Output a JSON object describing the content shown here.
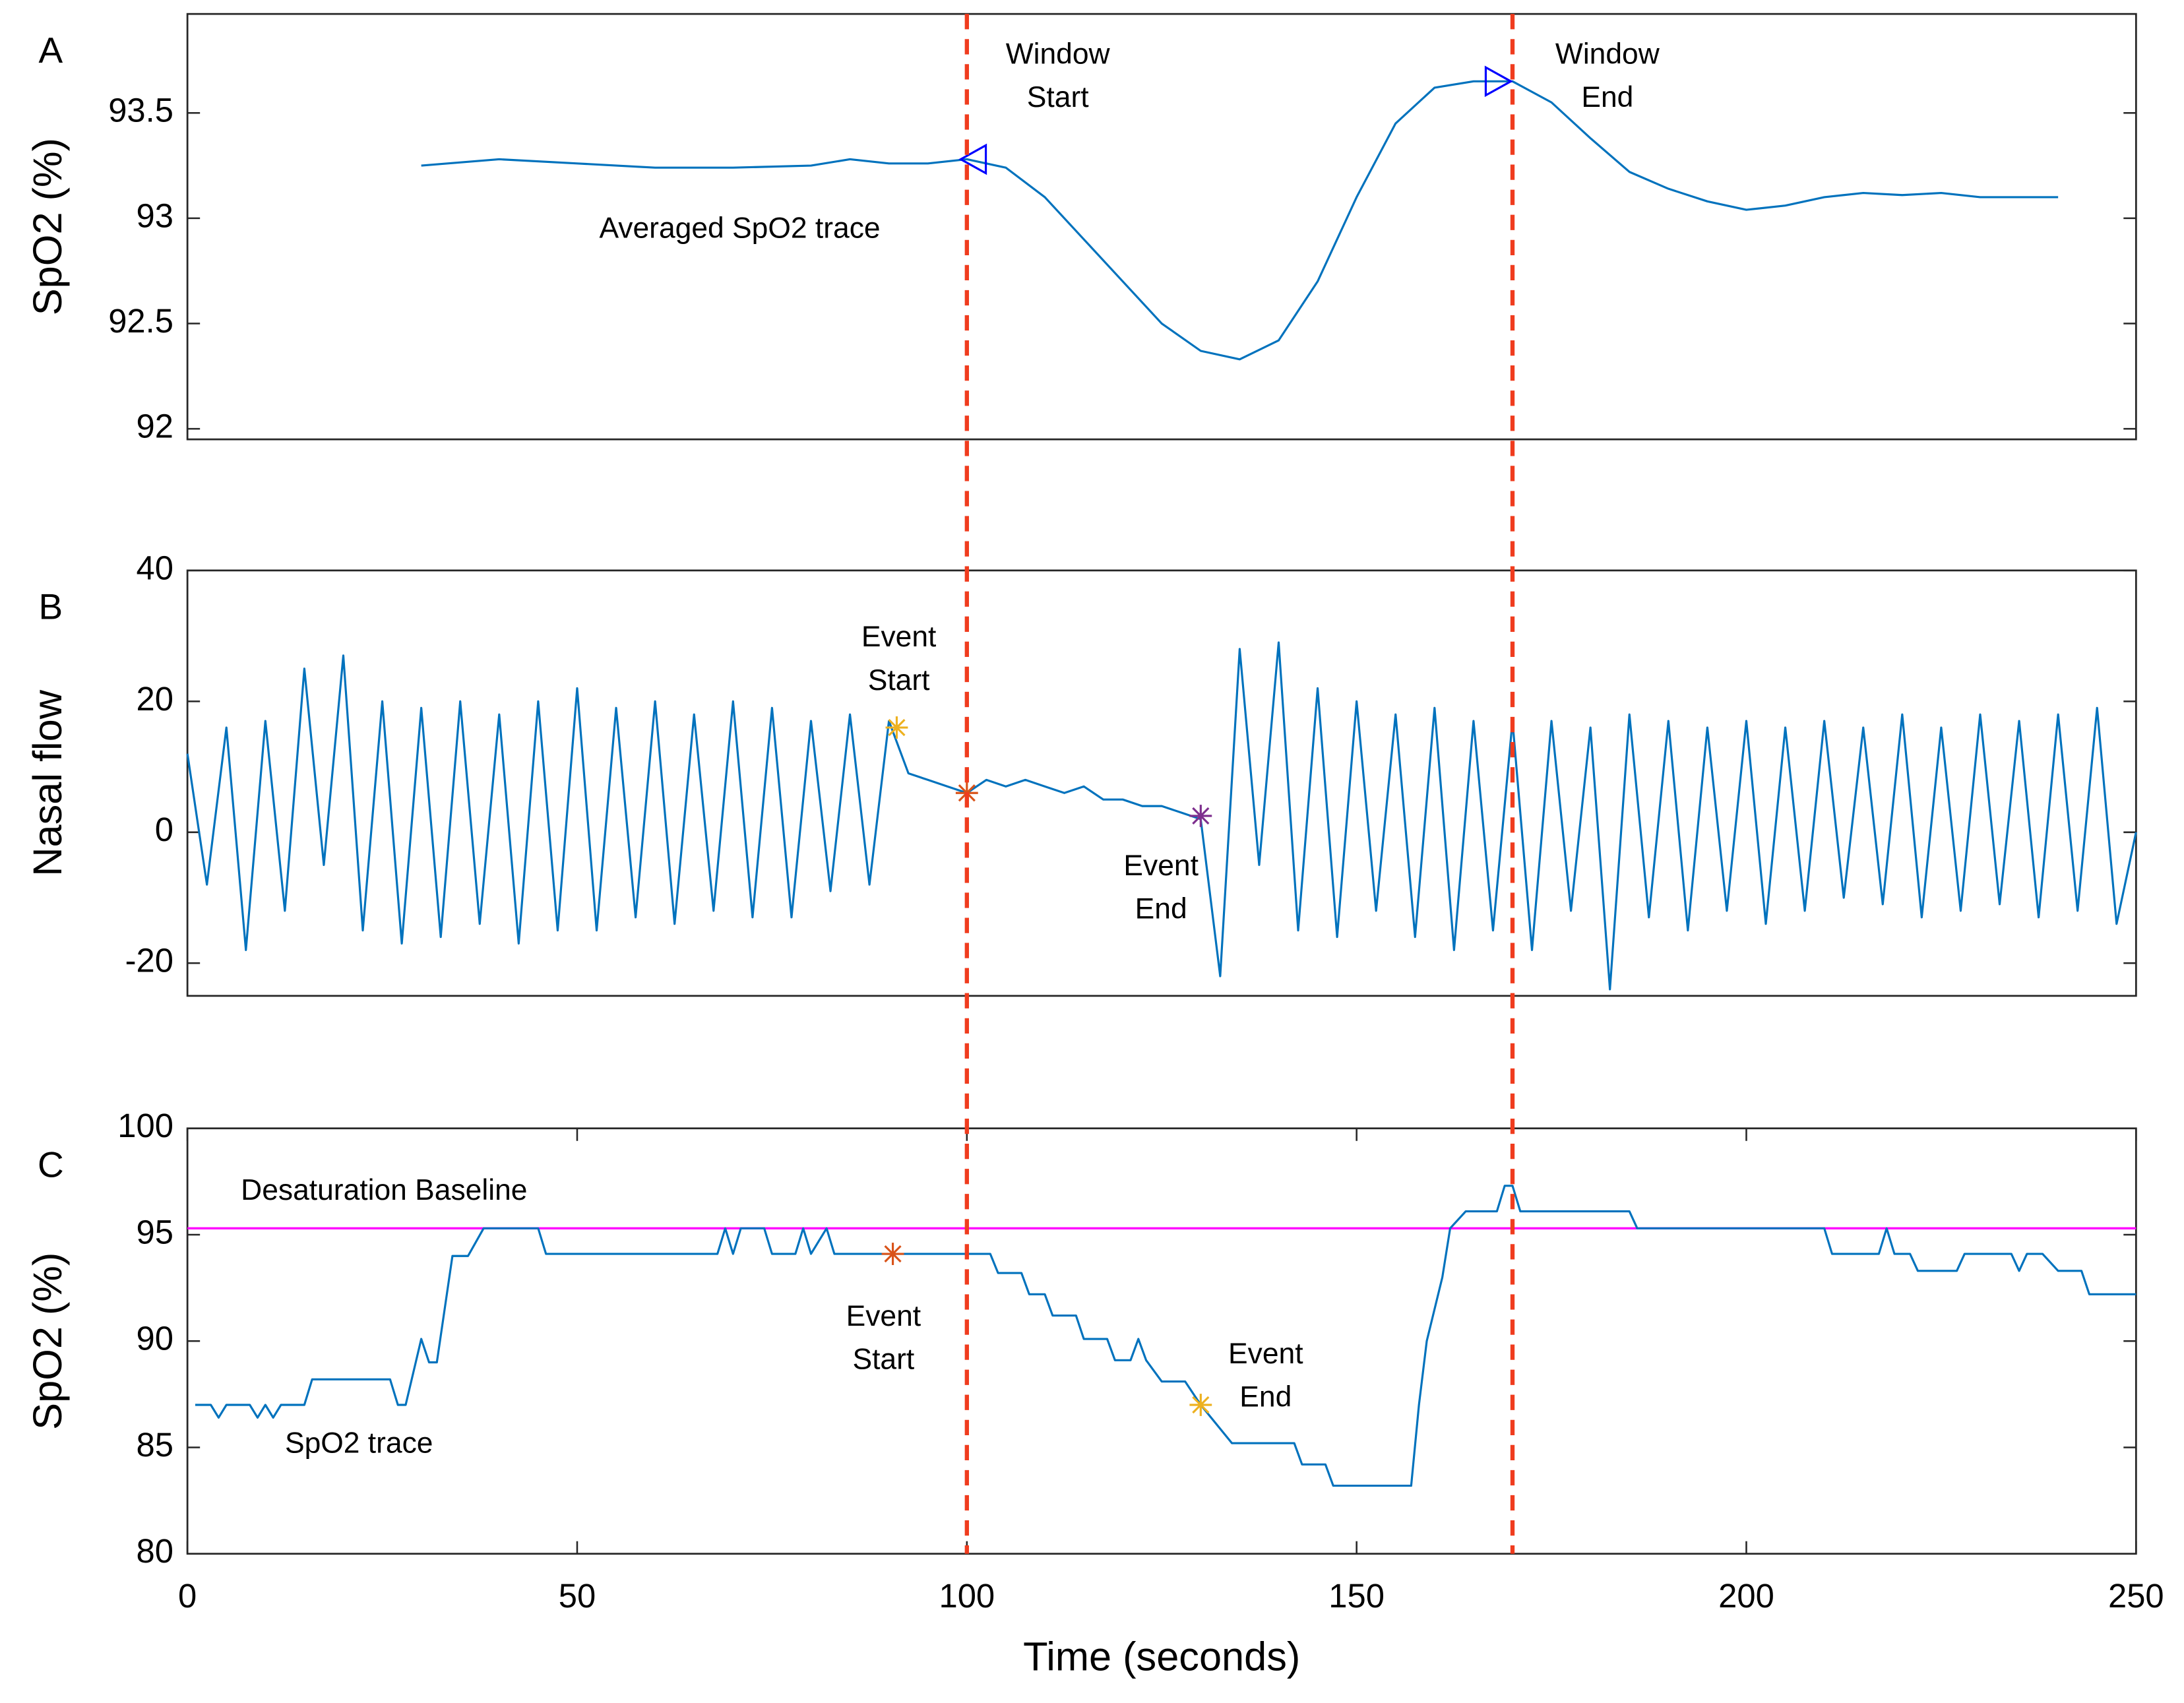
{
  "chart_data": [
    {
      "type": "line",
      "panel_label": "A",
      "ylabel": "SpO2 (%)",
      "xlim": [
        0,
        250
      ],
      "ylim": [
        91.95,
        93.97
      ],
      "yticks": [
        92,
        92.5,
        93,
        93.5
      ],
      "x": [
        30,
        40,
        50,
        60,
        70,
        80,
        85,
        90,
        95,
        100,
        105,
        110,
        115,
        120,
        125,
        130,
        135,
        140,
        145,
        150,
        155,
        160,
        165,
        170,
        175,
        180,
        185,
        190,
        195,
        200,
        205,
        210,
        215,
        220,
        225,
        230,
        235,
        240
      ],
      "series": [
        {
          "name": "Averaged SpO2 trace",
          "color": "#0072bd",
          "values": [
            93.25,
            93.28,
            93.26,
            93.24,
            93.24,
            93.25,
            93.28,
            93.26,
            93.26,
            93.28,
            93.24,
            93.1,
            92.9,
            92.7,
            92.5,
            92.37,
            92.33,
            92.42,
            92.7,
            93.1,
            93.45,
            93.62,
            93.65,
            93.65,
            93.55,
            93.38,
            93.22,
            93.14,
            93.08,
            93.04,
            93.06,
            93.1,
            93.12,
            93.11,
            93.12,
            93.1,
            93.1,
            93.1
          ]
        }
      ],
      "markers": [
        {
          "x": 101,
          "y": 93.28,
          "symbol": "triangle-left",
          "color": "#0000ff"
        },
        {
          "x": 168,
          "y": 93.65,
          "symbol": "triangle-right",
          "color": "#0000ff"
        }
      ],
      "annotations": [
        {
          "lines": [
            "Window",
            "Start"
          ]
        },
        {
          "lines": [
            "Window",
            "End"
          ]
        }
      ],
      "vlines": [
        100,
        170
      ],
      "vline_color": "#f03c1e"
    },
    {
      "type": "line",
      "panel_label": "B",
      "ylabel": "Nasal flow",
      "xlim": [
        0,
        250
      ],
      "ylim": [
        -25,
        40
      ],
      "yticks": [
        -20,
        0,
        20,
        40
      ],
      "x": [
        0,
        2.5,
        5,
        7.5,
        10,
        12.5,
        15,
        17.5,
        20,
        22.5,
        25,
        27.5,
        30,
        32.5,
        35,
        37.5,
        40,
        42.5,
        45,
        47.5,
        50,
        52.5,
        55,
        57.5,
        60,
        62.5,
        65,
        67.5,
        70,
        72.5,
        75,
        77.5,
        80,
        82.5,
        85,
        87.5,
        90,
        92.5,
        95,
        97.5,
        100,
        102.5,
        105,
        107.5,
        110,
        112.5,
        115,
        117.5,
        120,
        122.5,
        125,
        127.5,
        130,
        132.5,
        135,
        137.5,
        140,
        142.5,
        145,
        147.5,
        150,
        152.5,
        155,
        157.5,
        160,
        162.5,
        165,
        167.5,
        170,
        172.5,
        175,
        177.5,
        180,
        182.5,
        185,
        187.5,
        190,
        192.5,
        195,
        197.5,
        200,
        202.5,
        205,
        207.5,
        210,
        212.5,
        215,
        217.5,
        220,
        222.5,
        225,
        227.5,
        230,
        232.5,
        235,
        237.5,
        240,
        242.5,
        245,
        247.5,
        250
      ],
      "series": [
        {
          "color": "#0072bd",
          "values": [
            12,
            -8,
            16,
            -18,
            17,
            -12,
            25,
            -5,
            27,
            -15,
            20,
            -17,
            19,
            -16,
            20,
            -14,
            18,
            -17,
            20,
            -15,
            22,
            -15,
            19,
            -13,
            20,
            -14,
            18,
            -12,
            20,
            -13,
            19,
            -13,
            17,
            -9,
            18,
            -8,
            17,
            9,
            8,
            7,
            6,
            8,
            7,
            8,
            7,
            6,
            7,
            5,
            5,
            4,
            4,
            3,
            2,
            -22,
            28,
            -5,
            29,
            -15,
            22,
            -16,
            20,
            -12,
            18,
            -16,
            19,
            -18,
            17,
            -15,
            17,
            -18,
            17,
            -12,
            16,
            -24,
            18,
            -13,
            17,
            -15,
            16,
            -12,
            17,
            -14,
            16,
            -12,
            17,
            -10,
            16,
            -11,
            18,
            -13,
            16,
            -12,
            18,
            -11,
            17,
            -13,
            18,
            -12,
            19,
            -14,
            0
          ]
        }
      ],
      "markers": [
        {
          "x": 91,
          "y": 16,
          "symbol": "star",
          "color": "#edb120"
        },
        {
          "x": 100,
          "y": 6,
          "symbol": "star",
          "color": "#d95319"
        },
        {
          "x": 130,
          "y": 2.5,
          "symbol": "star",
          "color": "#7e2f8e"
        }
      ],
      "annotations": [
        {
          "lines": [
            "Event",
            "Start"
          ]
        },
        {
          "lines": [
            "Event",
            "End"
          ]
        }
      ]
    },
    {
      "type": "line",
      "panel_label": "C",
      "ylabel": "SpO2 (%)",
      "xlabel": "Time (seconds)",
      "xlim": [
        0,
        250
      ],
      "ylim": [
        80,
        100
      ],
      "xticks": [
        0,
        50,
        100,
        150,
        200,
        250
      ],
      "yticks": [
        80,
        85,
        90,
        95,
        100
      ],
      "x": [
        1,
        3,
        4,
        5,
        8,
        9,
        10,
        11,
        12,
        15,
        16,
        26,
        27,
        28,
        30,
        31,
        32,
        34,
        36,
        38,
        45,
        46,
        68,
        69,
        70,
        71,
        74,
        75,
        78,
        79,
        80,
        82,
        83,
        103,
        104,
        107,
        108,
        110,
        111,
        114,
        115,
        118,
        119,
        121,
        122,
        123,
        125,
        128,
        130,
        132,
        134,
        142,
        143,
        146,
        147,
        157,
        158,
        159,
        161,
        162,
        164,
        168,
        169,
        170,
        171,
        185,
        186,
        210,
        211,
        217,
        218,
        219,
        221,
        222,
        227,
        228,
        234,
        235,
        236,
        238,
        240,
        243,
        244,
        250
      ],
      "series": [
        {
          "name": "SpO2 trace",
          "color": "#0072bd",
          "values": [
            87,
            87,
            86.4,
            87,
            87,
            86.4,
            87,
            86.4,
            87,
            87,
            88.2,
            88.2,
            87,
            87,
            90.1,
            89,
            89,
            94,
            94,
            95.3,
            95.3,
            94.1,
            94.1,
            95.3,
            94.1,
            95.3,
            95.3,
            94.1,
            94.1,
            95.3,
            94.1,
            95.3,
            94.1,
            94.1,
            93.2,
            93.2,
            92.2,
            92.2,
            91.2,
            91.2,
            90.1,
            90.1,
            89.1,
            89.1,
            90.1,
            89.1,
            88.1,
            88.1,
            87,
            86.1,
            85.2,
            85.2,
            84.2,
            84.2,
            83.2,
            83.2,
            87,
            90,
            93,
            95.3,
            96.1,
            96.1,
            97.3,
            97.3,
            96.1,
            96.1,
            95.3,
            95.3,
            94.1,
            94.1,
            95.3,
            94.1,
            94.1,
            93.3,
            93.3,
            94.1,
            94.1,
            93.3,
            94.1,
            94.1,
            93.3,
            93.3,
            92.2,
            92.2
          ]
        }
      ],
      "hlines": [
        {
          "y": 95.3,
          "label": "Desaturation Baseline",
          "color": "#ff00ff"
        }
      ],
      "markers": [
        {
          "x": 90.5,
          "y": 94.1,
          "symbol": "star",
          "color": "#d95319"
        },
        {
          "x": 130,
          "y": 87,
          "symbol": "star",
          "color": "#edb120"
        }
      ],
      "annotations": [
        {
          "lines": [
            "Event",
            "Start"
          ]
        },
        {
          "lines": [
            "Event",
            "End"
          ]
        }
      ]
    }
  ]
}
